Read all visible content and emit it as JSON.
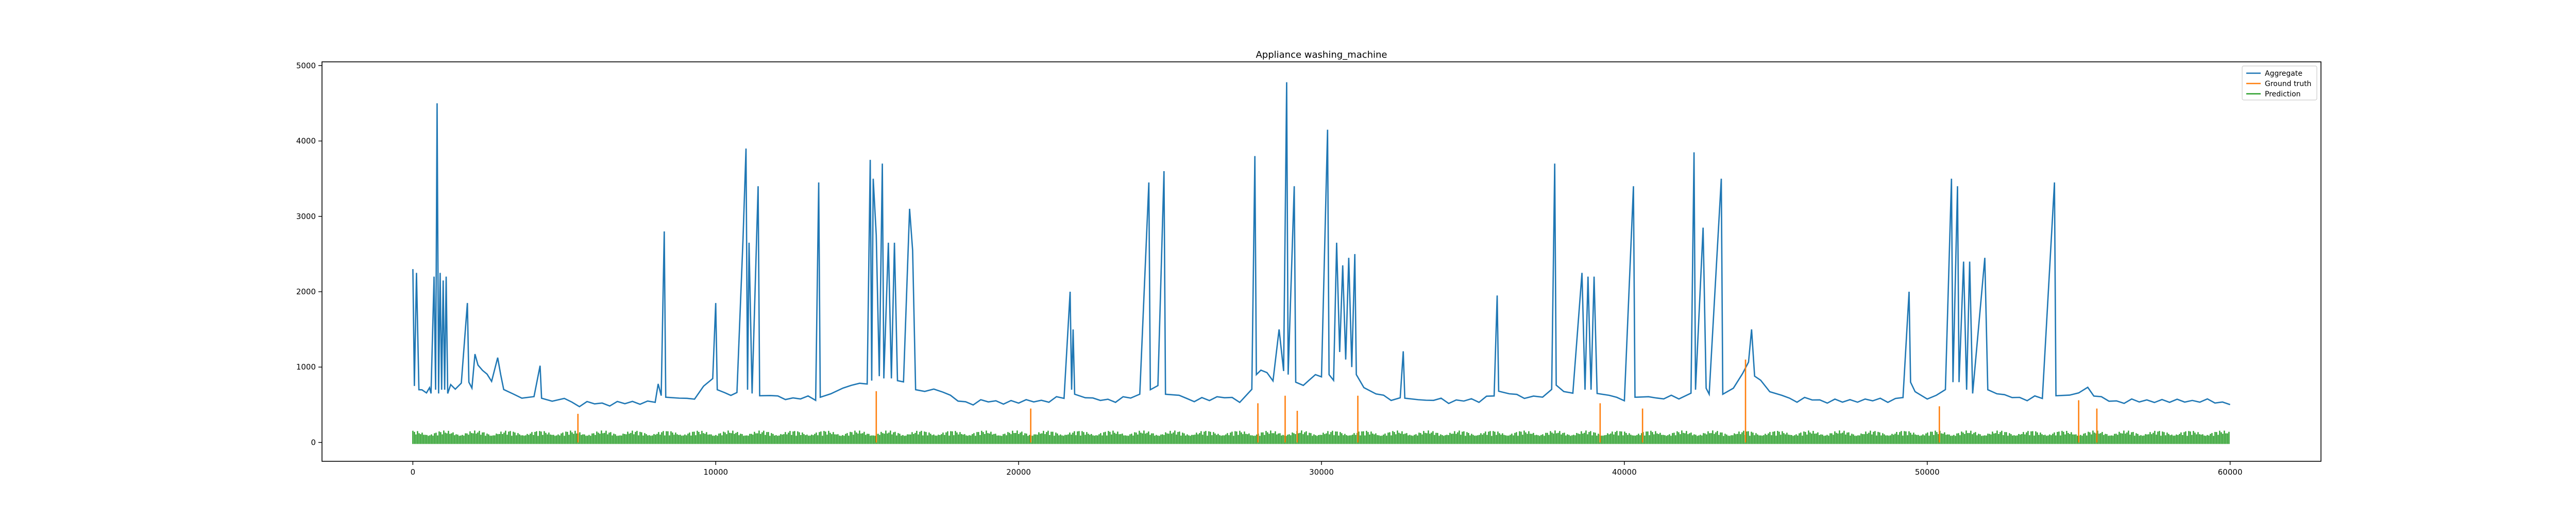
{
  "chart_data": {
    "type": "line",
    "title": "Appliance washing_machine",
    "xlabel": "",
    "ylabel": "",
    "xlim": [
      -3000,
      63000
    ],
    "ylim": [
      -250,
      5050
    ],
    "xticks": [
      0,
      10000,
      20000,
      30000,
      40000,
      50000,
      60000
    ],
    "yticks": [
      0,
      1000,
      2000,
      3000,
      4000,
      5000
    ],
    "grid": false,
    "legend_position": "top-right",
    "series": [
      {
        "name": "Aggregate",
        "color": "#1f77b4",
        "points": [
          [
            0,
            2300
          ],
          [
            50,
            750
          ],
          [
            120,
            2250
          ],
          [
            200,
            700
          ],
          [
            300,
            680
          ],
          [
            450,
            650
          ],
          [
            550,
            700
          ],
          [
            600,
            640
          ],
          [
            700,
            2200
          ],
          [
            750,
            700
          ],
          [
            800,
            4500
          ],
          [
            850,
            650
          ],
          [
            900,
            2250
          ],
          [
            950,
            700
          ],
          [
            1000,
            2150
          ],
          [
            1050,
            700
          ],
          [
            1100,
            2200
          ],
          [
            1150,
            650
          ],
          [
            1250,
            750
          ],
          [
            1400,
            700
          ],
          [
            1600,
            760
          ],
          [
            1800,
            1850
          ],
          [
            1850,
            800
          ],
          [
            1950,
            720
          ],
          [
            2050,
            1150
          ],
          [
            2150,
            1000
          ],
          [
            2300,
            950
          ],
          [
            2450,
            880
          ],
          [
            2600,
            800
          ],
          [
            2800,
            1100
          ],
          [
            2900,
            900
          ],
          [
            3000,
            680
          ],
          [
            3300,
            620
          ],
          [
            3600,
            560
          ],
          [
            4000,
            580
          ],
          [
            4200,
            1000
          ],
          [
            4250,
            560
          ],
          [
            4600,
            520
          ],
          [
            5000,
            560
          ],
          [
            5500,
            500
          ],
          [
            6000,
            530
          ],
          [
            6500,
            500
          ],
          [
            7000,
            540
          ],
          [
            7500,
            510
          ],
          [
            8000,
            560
          ],
          [
            8100,
            750
          ],
          [
            8200,
            600
          ],
          [
            8300,
            2800
          ],
          [
            8350,
            600
          ],
          [
            8800,
            560
          ],
          [
            9300,
            600
          ],
          [
            9600,
            720
          ],
          [
            9900,
            820
          ],
          [
            10000,
            1850
          ],
          [
            10050,
            700
          ],
          [
            10300,
            650
          ],
          [
            10500,
            600
          ],
          [
            10700,
            640
          ],
          [
            10900,
            2700
          ],
          [
            11000,
            3900
          ],
          [
            11050,
            700
          ],
          [
            11100,
            2650
          ],
          [
            11200,
            650
          ],
          [
            11400,
            3400
          ],
          [
            11450,
            620
          ],
          [
            11800,
            600
          ],
          [
            12300,
            580
          ],
          [
            12800,
            600
          ],
          [
            13300,
            580
          ],
          [
            13400,
            3450
          ],
          [
            13450,
            600
          ],
          [
            13800,
            620
          ],
          [
            14200,
            700
          ],
          [
            14500,
            760
          ],
          [
            15000,
            800
          ],
          [
            15100,
            3750
          ],
          [
            15150,
            820
          ],
          [
            15200,
            3500
          ],
          [
            15300,
            2750
          ],
          [
            15400,
            880
          ],
          [
            15500,
            3700
          ],
          [
            15550,
            850
          ],
          [
            15700,
            2650
          ],
          [
            15800,
            850
          ],
          [
            15900,
            2650
          ],
          [
            16000,
            820
          ],
          [
            16200,
            780
          ],
          [
            16400,
            3100
          ],
          [
            16500,
            2550
          ],
          [
            16600,
            700
          ],
          [
            16900,
            650
          ],
          [
            17200,
            680
          ],
          [
            17500,
            640
          ],
          [
            18000,
            560
          ],
          [
            18500,
            520
          ],
          [
            19000,
            560
          ],
          [
            19500,
            520
          ],
          [
            20000,
            550
          ],
          [
            20500,
            540
          ],
          [
            21000,
            560
          ],
          [
            21500,
            600
          ],
          [
            21700,
            2000
          ],
          [
            21750,
            700
          ],
          [
            21800,
            1500
          ],
          [
            21850,
            640
          ],
          [
            22200,
            580
          ],
          [
            22700,
            560
          ],
          [
            23200,
            560
          ],
          [
            23700,
            600
          ],
          [
            24000,
            640
          ],
          [
            24300,
            3450
          ],
          [
            24350,
            700
          ],
          [
            24600,
            750
          ],
          [
            24800,
            3600
          ],
          [
            24850,
            640
          ],
          [
            25300,
            600
          ],
          [
            25800,
            560
          ],
          [
            26300,
            580
          ],
          [
            26800,
            600
          ],
          [
            27300,
            560
          ],
          [
            27700,
            680
          ],
          [
            27800,
            3800
          ],
          [
            27850,
            900
          ],
          [
            28000,
            950
          ],
          [
            28200,
            900
          ],
          [
            28400,
            800
          ],
          [
            28600,
            1500
          ],
          [
            28750,
            920
          ],
          [
            28850,
            4780
          ],
          [
            28900,
            900
          ],
          [
            29100,
            3400
          ],
          [
            29150,
            800
          ],
          [
            29400,
            740
          ],
          [
            29800,
            900
          ],
          [
            30000,
            850
          ],
          [
            30200,
            4150
          ],
          [
            30250,
            900
          ],
          [
            30400,
            800
          ],
          [
            30500,
            2650
          ],
          [
            30600,
            1200
          ],
          [
            30700,
            2350
          ],
          [
            30800,
            1100
          ],
          [
            30900,
            2450
          ],
          [
            31000,
            1000
          ],
          [
            31100,
            2500
          ],
          [
            31150,
            900
          ],
          [
            31400,
            700
          ],
          [
            31800,
            620
          ],
          [
            32300,
            580
          ],
          [
            32600,
            580
          ],
          [
            32700,
            1200
          ],
          [
            32750,
            560
          ],
          [
            33200,
            540
          ],
          [
            33700,
            580
          ],
          [
            34200,
            540
          ],
          [
            34700,
            560
          ],
          [
            35200,
            560
          ],
          [
            35700,
            620
          ],
          [
            35800,
            1950
          ],
          [
            35850,
            680
          ],
          [
            36200,
            620
          ],
          [
            36700,
            600
          ],
          [
            37300,
            620
          ],
          [
            37600,
            700
          ],
          [
            37700,
            3700
          ],
          [
            37750,
            760
          ],
          [
            38000,
            650
          ],
          [
            38300,
            640
          ],
          [
            38600,
            2250
          ],
          [
            38700,
            700
          ],
          [
            38800,
            2200
          ],
          [
            38900,
            700
          ],
          [
            39000,
            2200
          ],
          [
            39100,
            650
          ],
          [
            39500,
            600
          ],
          [
            40000,
            580
          ],
          [
            40300,
            3400
          ],
          [
            40350,
            600
          ],
          [
            40800,
            580
          ],
          [
            41300,
            600
          ],
          [
            41800,
            600
          ],
          [
            42200,
            640
          ],
          [
            42300,
            3850
          ],
          [
            42350,
            700
          ],
          [
            42600,
            2850
          ],
          [
            42700,
            720
          ],
          [
            42800,
            640
          ],
          [
            43200,
            3500
          ],
          [
            43250,
            640
          ],
          [
            43600,
            700
          ],
          [
            43900,
            900
          ],
          [
            44100,
            1050
          ],
          [
            44200,
            1500
          ],
          [
            44300,
            860
          ],
          [
            44500,
            820
          ],
          [
            44800,
            650
          ],
          [
            45200,
            600
          ],
          [
            45700,
            560
          ],
          [
            46200,
            580
          ],
          [
            46700,
            540
          ],
          [
            47200,
            560
          ],
          [
            47700,
            540
          ],
          [
            48200,
            580
          ],
          [
            48700,
            540
          ],
          [
            49200,
            620
          ],
          [
            49400,
            2000
          ],
          [
            49450,
            800
          ],
          [
            49600,
            650
          ],
          [
            50000,
            560
          ],
          [
            50300,
            620
          ],
          [
            50600,
            700
          ],
          [
            50800,
            3500
          ],
          [
            50850,
            800
          ],
          [
            51000,
            3400
          ],
          [
            51050,
            800
          ],
          [
            51200,
            2400
          ],
          [
            51300,
            700
          ],
          [
            51400,
            2400
          ],
          [
            51500,
            650
          ],
          [
            51900,
            2450
          ],
          [
            52000,
            700
          ],
          [
            52300,
            620
          ],
          [
            52800,
            600
          ],
          [
            53300,
            580
          ],
          [
            53800,
            600
          ],
          [
            54200,
            3450
          ],
          [
            54250,
            620
          ],
          [
            54700,
            600
          ],
          [
            55000,
            650
          ],
          [
            55300,
            720
          ],
          [
            55500,
            600
          ],
          [
            56000,
            560
          ],
          [
            56500,
            540
          ],
          [
            57000,
            560
          ],
          [
            57500,
            540
          ],
          [
            58000,
            560
          ],
          [
            58500,
            540
          ],
          [
            59000,
            560
          ],
          [
            59500,
            540
          ],
          [
            60000,
            520
          ]
        ]
      },
      {
        "name": "Ground truth",
        "color": "#ff7f0e",
        "baseline": 0,
        "spikes": [
          [
            5450,
            380
          ],
          [
            15300,
            680
          ],
          [
            20400,
            450
          ],
          [
            27900,
            520
          ],
          [
            28800,
            620
          ],
          [
            29200,
            420
          ],
          [
            31200,
            620
          ],
          [
            39200,
            520
          ],
          [
            40600,
            450
          ],
          [
            44000,
            1100
          ],
          [
            50400,
            480
          ],
          [
            55000,
            560
          ],
          [
            55600,
            450
          ]
        ]
      },
      {
        "name": "Prediction",
        "color": "#2ca02c",
        "band_low": -20,
        "band_high": 160,
        "x_range": [
          0,
          60000
        ]
      }
    ]
  }
}
